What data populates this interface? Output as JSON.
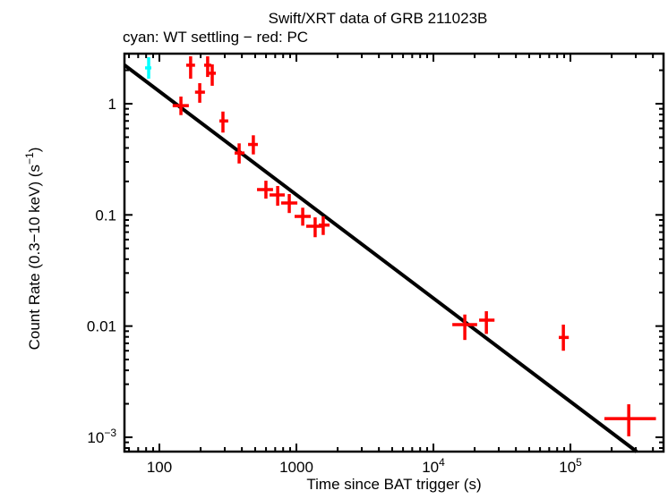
{
  "chart_data": {
    "type": "scatter",
    "title": "Swift/XRT data of GRB 211023B",
    "subtitle": "cyan: WT settling − red: PC",
    "xlabel": "Time since BAT trigger (s)",
    "ylabel_parts": [
      {
        "t": "Count Rate (0.3−10 keV) (s"
      },
      {
        "t": "−1",
        "sup": true
      },
      {
        "t": ")"
      }
    ],
    "x_scale": "log",
    "y_scale": "log",
    "xlim": [
      55.6,
      478000
    ],
    "ylim": [
      0.000743,
      2.82
    ],
    "grid": false,
    "legend_position": "subtitle-text",
    "x_ticks": [
      {
        "v": 100,
        "label": "100"
      },
      {
        "v": 1000,
        "label": "1000"
      },
      {
        "v": 10000,
        "label": "10^4"
      },
      {
        "v": 100000,
        "label": "10^5"
      }
    ],
    "y_ticks": [
      {
        "v": 1,
        "label": "1"
      },
      {
        "v": 0.1,
        "label": "0.1"
      },
      {
        "v": 0.01,
        "label": "0.01"
      },
      {
        "v": 0.001,
        "label": "10^-3"
      }
    ],
    "series": [
      {
        "name": "WT settling",
        "color": "#00ffff",
        "points": [
          {
            "t": 83.5,
            "t_lo": 78.6,
            "t_hi": 87.3,
            "rate": 2.1,
            "rate_lo": 1.68,
            "rate_hi": 2.62
          }
        ]
      },
      {
        "name": "PC",
        "color": "#ff0000",
        "points": [
          {
            "t": 143.6,
            "t_lo": 125,
            "t_hi": 164,
            "rate": 0.96,
            "rate_lo": 0.79,
            "rate_hi": 1.16
          },
          {
            "t": 169,
            "t_lo": 157,
            "t_hi": 182,
            "rate": 2.22,
            "rate_lo": 1.68,
            "rate_hi": 2.67
          },
          {
            "t": 197,
            "t_lo": 182,
            "t_hi": 215,
            "rate": 1.27,
            "rate_lo": 1.02,
            "rate_hi": 1.53
          },
          {
            "t": 225,
            "t_lo": 212,
            "t_hi": 239,
            "rate": 2.22,
            "rate_lo": 1.74,
            "rate_hi": 2.67
          },
          {
            "t": 243,
            "t_lo": 229,
            "t_hi": 258,
            "rate": 1.88,
            "rate_lo": 1.45,
            "rate_hi": 2.26
          },
          {
            "t": 291,
            "t_lo": 274,
            "t_hi": 318,
            "rate": 0.7,
            "rate_lo": 0.55,
            "rate_hi": 0.85
          },
          {
            "t": 382,
            "t_lo": 354,
            "t_hi": 418,
            "rate": 0.36,
            "rate_lo": 0.29,
            "rate_hi": 0.44
          },
          {
            "t": 485,
            "t_lo": 444,
            "t_hi": 523,
            "rate": 0.43,
            "rate_lo": 0.35,
            "rate_hi": 0.52
          },
          {
            "t": 599,
            "t_lo": 516,
            "t_hi": 675,
            "rate": 0.169,
            "rate_lo": 0.14,
            "rate_hi": 0.203
          },
          {
            "t": 730,
            "t_lo": 637,
            "t_hi": 822,
            "rate": 0.151,
            "rate_lo": 0.121,
            "rate_hi": 0.182
          },
          {
            "t": 887,
            "t_lo": 774,
            "t_hi": 1016,
            "rate": 0.128,
            "rate_lo": 0.104,
            "rate_hi": 0.154
          },
          {
            "t": 1112,
            "t_lo": 970,
            "t_hi": 1272,
            "rate": 0.097,
            "rate_lo": 0.08,
            "rate_hi": 0.116
          },
          {
            "t": 1370,
            "t_lo": 1180,
            "t_hi": 1546,
            "rate": 0.079,
            "rate_lo": 0.063,
            "rate_hi": 0.095
          },
          {
            "t": 1569,
            "t_lo": 1456,
            "t_hi": 1746,
            "rate": 0.081,
            "rate_lo": 0.066,
            "rate_hi": 0.097
          },
          {
            "t": 16950,
            "t_lo": 13740,
            "t_hi": 20850,
            "rate": 0.0103,
            "rate_lo": 0.0075,
            "rate_hi": 0.0127
          },
          {
            "t": 24350,
            "t_lo": 21560,
            "t_hi": 27920,
            "rate": 0.0113,
            "rate_lo": 0.0085,
            "rate_hi": 0.0136
          },
          {
            "t": 88800,
            "t_lo": 82200,
            "t_hi": 97300,
            "rate": 0.0079,
            "rate_lo": 0.006,
            "rate_hi": 0.0103
          },
          {
            "t": 266500,
            "t_lo": 177000,
            "t_hi": 421000,
            "rate": 0.00147,
            "rate_lo": 0.00102,
            "rate_hi": 0.00198
          }
        ]
      }
    ],
    "fit": {
      "color": "#000000",
      "rate_at_100s": 1.29,
      "power_law_index": -0.93
    }
  }
}
